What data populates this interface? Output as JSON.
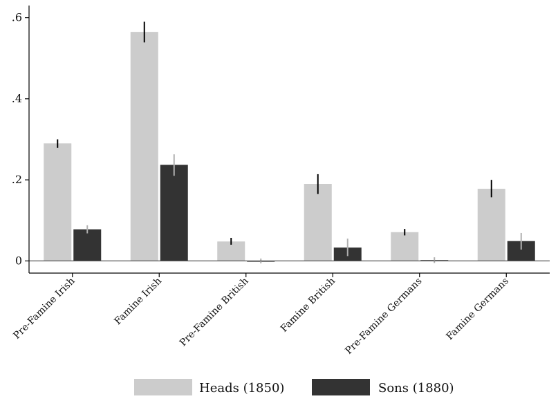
{
  "chart_data": {
    "type": "bar",
    "categories": [
      "Pre-Famine Irish",
      "Famine Irish",
      "Pre-Famine British",
      "Famine British",
      "Pre-Famine Germans",
      "Famine Germans"
    ],
    "series": [
      {
        "name": "Heads (1850)",
        "color": "#cccccc",
        "ci_color": "#000000",
        "values": [
          0.29,
          0.565,
          0.048,
          0.19,
          0.071,
          0.178
        ],
        "ci_low": [
          0.279,
          0.539,
          0.04,
          0.165,
          0.063,
          0.157
        ],
        "ci_high": [
          0.3,
          0.59,
          0.057,
          0.214,
          0.079,
          0.2
        ]
      },
      {
        "name": "Sons (1880)",
        "color": "#333333",
        "ci_color": "#b0b0b0",
        "values": [
          0.078,
          0.237,
          0.0,
          0.033,
          0.002,
          0.049
        ],
        "ci_low": [
          0.068,
          0.21,
          -0.006,
          0.012,
          -0.005,
          0.028
        ],
        "ci_high": [
          0.088,
          0.263,
          0.006,
          0.055,
          0.009,
          0.069
        ]
      }
    ],
    "y_ticks": [
      0,
      0.2,
      0.4,
      0.6
    ],
    "y_tick_labels": [
      "0",
      ".2",
      ".4",
      ".6"
    ],
    "ylim": [
      -0.03,
      0.63
    ],
    "grid": false,
    "legend_position": "bottom-center"
  }
}
